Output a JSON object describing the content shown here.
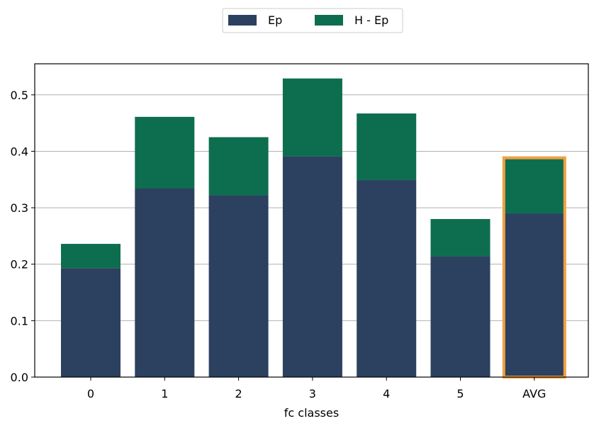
{
  "chart_data": {
    "type": "bar",
    "stacked": true,
    "categories": [
      "0",
      "1",
      "2",
      "3",
      "4",
      "5",
      "AVG"
    ],
    "series": [
      {
        "name": "Ep",
        "values": [
          0.193,
          0.334,
          0.322,
          0.391,
          0.349,
          0.214,
          0.29
        ],
        "color": "#2c4060"
      },
      {
        "name": "H - Ep",
        "values": [
          0.043,
          0.127,
          0.103,
          0.138,
          0.118,
          0.066,
          0.096
        ],
        "color": "#0d6e4f"
      }
    ],
    "highlight": {
      "category": "AVG",
      "color": "#f0a040"
    },
    "xlabel": "fc classes",
    "ylabel": "",
    "ylim": [
      0,
      0.555
    ],
    "yticks": [
      "0.0",
      "0.1",
      "0.2",
      "0.3",
      "0.4",
      "0.5"
    ],
    "grid": "horizontal",
    "legend_position": "top-center"
  }
}
